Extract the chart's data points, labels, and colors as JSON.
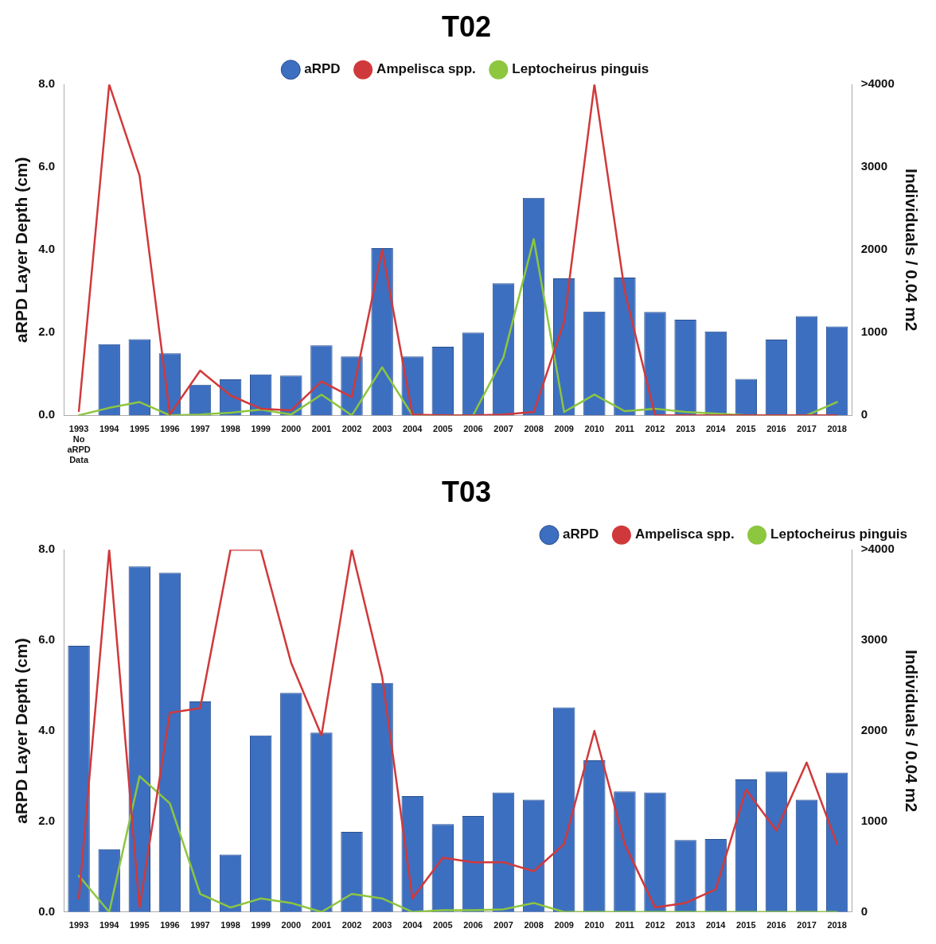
{
  "chart_data": [
    {
      "type": "bar",
      "title": "T02",
      "ylabel": "aRPD Layer Depth (cm)",
      "y2label": "Individuals / 0.04 m2",
      "categories": [
        "1993\nNo\naRPD\nData",
        "1994",
        "1995",
        "1996",
        "1997",
        "1998",
        "1999",
        "2000",
        "2001",
        "2002",
        "2003",
        "2004",
        "2005",
        "2006",
        "2007",
        "2008",
        "2009",
        "2010",
        "2011",
        "2012",
        "2013",
        "2014",
        "2015",
        "2016",
        "2017",
        "2018"
      ],
      "series": [
        {
          "name": "aRPD",
          "color": "#3d6fc0",
          "values": [
            null,
            1.72,
            1.84,
            1.5,
            0.74,
            0.87,
            0.99,
            0.96,
            1.69,
            1.42,
            4.04,
            1.42,
            1.66,
            2.0,
            3.19,
            5.26,
            3.31,
            2.51,
            3.33,
            2.5,
            2.31,
            2.03,
            0.88,
            1.83,
            2.4,
            2.15
          ]
        },
        {
          "name": "Ampelisca spp.",
          "type": "line",
          "axis": "y2",
          "color": "#d0393b",
          "values": [
            50,
            4000,
            2900,
            10,
            540,
            240,
            80,
            60,
            410,
            220,
            2000,
            10,
            0,
            0,
            10,
            40,
            1130,
            4000,
            1500,
            0,
            0,
            0,
            0,
            0,
            0,
            0
          ]
        },
        {
          "name": "Leptocheirus pinguis",
          "type": "line",
          "axis": "y2",
          "color": "#8dc63f",
          "values": [
            0,
            90,
            160,
            0,
            10,
            30,
            70,
            10,
            250,
            0,
            580,
            0,
            0,
            0,
            700,
            2130,
            40,
            250,
            50,
            80,
            40,
            20,
            0,
            0,
            0,
            160
          ]
        }
      ],
      "ylim": [
        0,
        8
      ],
      "yticks": [
        {
          "value": 0,
          "label": "0.0"
        },
        {
          "value": 2,
          "label": "2.0"
        },
        {
          "value": 4,
          "label": "4.0"
        },
        {
          "value": 6,
          "label": "6.0"
        },
        {
          "value": 8,
          "label": "8.0"
        }
      ],
      "y2lim": [
        0,
        4000
      ],
      "y2ticks": [
        0,
        1000,
        2000,
        3000,
        {
          "value": 4000,
          "label": ">4000"
        }
      ],
      "legend": "top",
      "grid": false
    },
    {
      "type": "bar",
      "title": "T03",
      "ylabel": "aRPD Layer Depth (cm)",
      "y2label": "Individuals / 0.04 m2",
      "categories": [
        "1993",
        "1994",
        "1995",
        "1996",
        "1997",
        "1998",
        "1999",
        "2000",
        "2001",
        "2002",
        "2003",
        "2004",
        "2005",
        "2006",
        "2007",
        "2008",
        "2009",
        "2010",
        "2011",
        "2012",
        "2013",
        "2014",
        "2015",
        "2016",
        "2017",
        "2018"
      ],
      "series": [
        {
          "name": "aRPD",
          "color": "#3d6fc0",
          "values": [
            5.88,
            1.39,
            7.63,
            7.49,
            4.65,
            1.27,
            3.9,
            4.84,
            3.96,
            1.77,
            5.06,
            2.56,
            1.94,
            2.12,
            2.64,
            2.48,
            4.52,
            3.35,
            2.66,
            2.64,
            1.59,
            1.61,
            2.93,
            3.1,
            2.48,
            3.08
          ]
        },
        {
          "name": "Ampelisca spp.",
          "type": "line",
          "axis": "y2",
          "color": "#d0393b",
          "values": [
            150,
            4000,
            50,
            2200,
            2250,
            4000,
            4000,
            2750,
            1950,
            4000,
            2600,
            150,
            600,
            550,
            550,
            450,
            750,
            2000,
            750,
            50,
            100,
            250,
            1350,
            900,
            1650,
            750
          ]
        },
        {
          "name": "Leptocheirus pinguis",
          "type": "line",
          "axis": "y2",
          "color": "#8dc63f",
          "values": [
            400,
            0,
            1500,
            1200,
            200,
            50,
            150,
            100,
            0,
            200,
            150,
            0,
            20,
            20,
            30,
            100,
            0,
            0,
            0,
            0,
            0,
            0,
            0,
            0,
            0,
            0
          ]
        }
      ],
      "ylim": [
        0,
        8
      ],
      "yticks": [
        {
          "value": 0,
          "label": "0.0"
        },
        {
          "value": 2,
          "label": "2.0"
        },
        {
          "value": 4,
          "label": "4.0"
        },
        {
          "value": 6,
          "label": "6.0"
        },
        {
          "value": 8,
          "label": "8.0"
        }
      ],
      "y2lim": [
        0,
        4000
      ],
      "y2ticks": [
        0,
        1000,
        2000,
        3000,
        {
          "value": 4000,
          "label": ">4000"
        }
      ],
      "legend": "top right",
      "grid": false
    }
  ]
}
